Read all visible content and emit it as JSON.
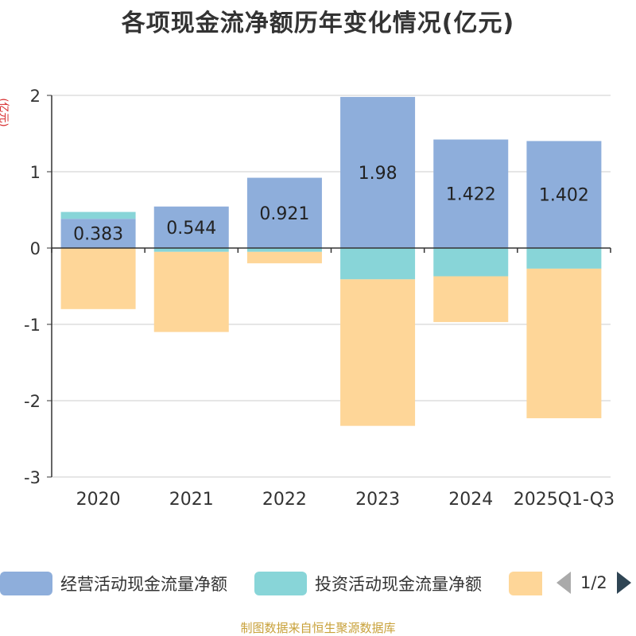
{
  "chart_data": {
    "type": "bar",
    "stacked": true,
    "title": "各项现金流净额历年变化情况(亿元)",
    "ylabel": "(亿元)",
    "ylim": [
      -3,
      2
    ],
    "yticks": [
      2,
      1,
      0,
      -1,
      -2,
      -3
    ],
    "categories": [
      "2020",
      "2021",
      "2022",
      "2023",
      "2024",
      "2025Q1-Q3"
    ],
    "series": [
      {
        "name": "经营活动现金流量净额",
        "color": "#8eaedb",
        "values": [
          0.383,
          0.544,
          0.921,
          1.98,
          1.422,
          1.402
        ]
      },
      {
        "name": "投资活动现金流量净额",
        "color": "#88d5d8",
        "values": [
          0.09,
          -0.05,
          -0.05,
          -0.41,
          -0.37,
          -0.27
        ]
      },
      {
        "name": "",
        "color": "#fed698",
        "values": [
          -0.8,
          -1.05,
          -0.15,
          -1.92,
          -0.6,
          -1.96
        ]
      }
    ],
    "data_labels": [
      "0.383",
      "0.544",
      "0.921",
      "1.98",
      "1.422",
      "1.402"
    ],
    "grid": true,
    "legend": "bottom"
  },
  "legend": {
    "items": [
      "经营活动现金流量净额",
      "投资活动现金流量净额",
      ""
    ],
    "page": "1/2"
  },
  "source": "制图数据来自恒生聚源数据库"
}
